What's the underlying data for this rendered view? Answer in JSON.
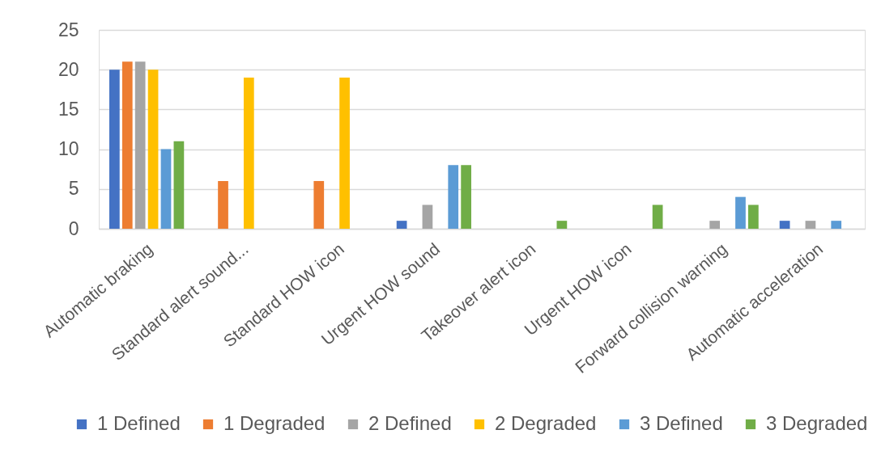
{
  "chart_data": {
    "type": "bar",
    "categories": [
      "Automatic braking",
      "Standard alert sound...",
      "Standard HOW icon",
      "Urgent HOW sound",
      "Takeover alert icon",
      "Urgent HOW icon",
      "Forward collision warning",
      "Automatic acceleration"
    ],
    "series": [
      {
        "name": "1 Defined",
        "color": "#4472c4",
        "values": [
          20,
          0,
          0,
          1,
          0,
          0,
          0,
          1
        ]
      },
      {
        "name": "1 Degraded",
        "color": "#ed7d31",
        "values": [
          21,
          6,
          6,
          0,
          0,
          0,
          0,
          0
        ]
      },
      {
        "name": "2 Defined",
        "color": "#a5a5a5",
        "values": [
          21,
          0,
          0,
          3,
          0,
          0,
          1,
          1
        ]
      },
      {
        "name": "2 Degraded",
        "color": "#ffc000",
        "values": [
          20,
          19,
          19,
          0,
          0,
          0,
          0,
          0
        ]
      },
      {
        "name": "3 Defined",
        "color": "#5b9bd5",
        "values": [
          10,
          0,
          0,
          8,
          0,
          0,
          4,
          1
        ]
      },
      {
        "name": "3 Degraded",
        "color": "#70ad47",
        "values": [
          11,
          0,
          0,
          8,
          1,
          3,
          3,
          0
        ]
      }
    ],
    "ylim": [
      0,
      25
    ],
    "yticks": [
      0,
      5,
      10,
      15,
      20,
      25
    ],
    "grid": "y",
    "legend": "bottom"
  }
}
